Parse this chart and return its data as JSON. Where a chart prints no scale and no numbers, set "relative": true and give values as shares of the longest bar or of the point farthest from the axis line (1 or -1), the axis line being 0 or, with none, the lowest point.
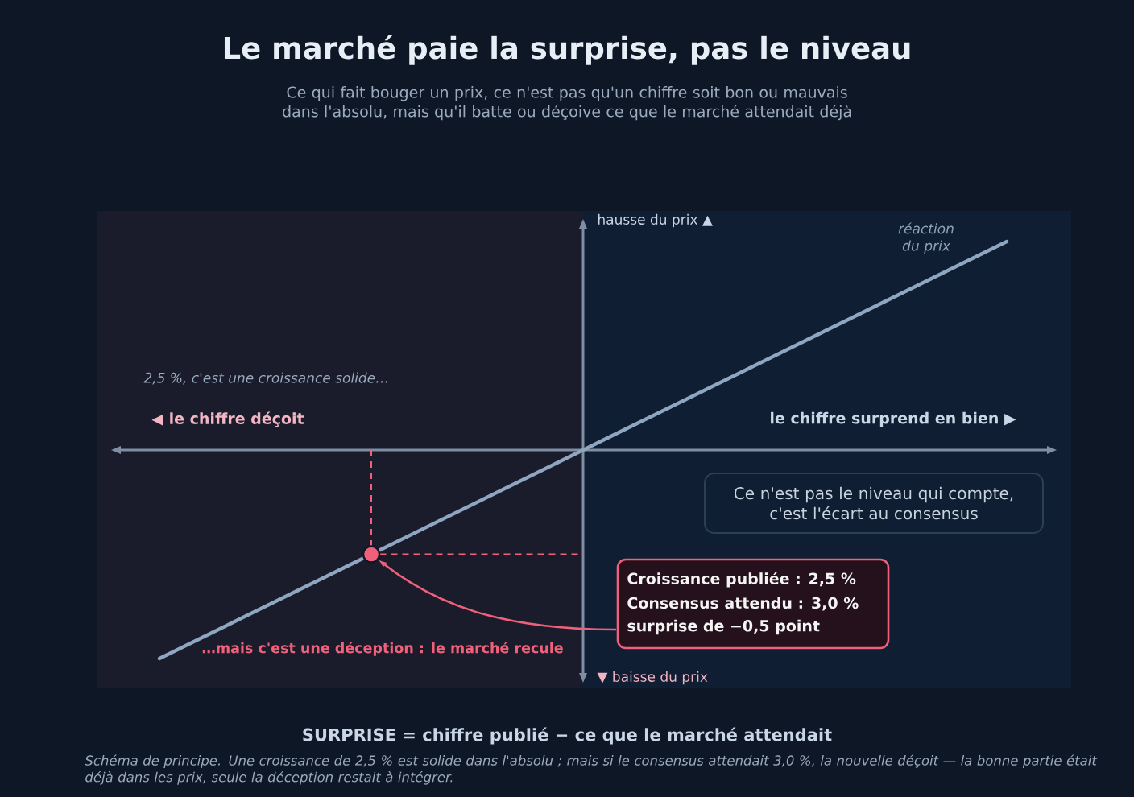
{
  "chart_data": {
    "type": "line",
    "relative": true,
    "title": "Le marché paie la surprise, pas le niveau",
    "subtitle": "Ce qui fait bouger un prix, ce n'est pas qu'un chiffre soit bon ou mauvais dans l'absolu, mais qu'il batte ou déçoive ce que le marché attendait déjà",
    "categories": [
      null,
      null,
      null,
      null,
      null
    ],
    "series": [
      {
        "name": "réaction du prix",
        "color": "#8fa6c0",
        "values": [
          -1,
          -0.5,
          0,
          0.5,
          1
        ]
      }
    ],
    "annotations": [
      "hausse du prix ▲",
      "▼ baisse du prix",
      "◀ le chiffre déçoit",
      "le chiffre surprend en bien ▶",
      "2,5 %, c'est une croissance solide…",
      "…mais c'est une déception : le marché recule",
      "Ce n'est pas le niveau qui compte, c'est l'écart au consensus",
      "Croissance publiée : 2,5 %",
      "Consensus attendu : 3,0 %",
      "surprise de −0,5 point",
      "SURPRISE = chiffre publié − ce que le marché attendait",
      "Schéma de principe. Une croissance de 2,5 % est solide dans l'absolu ; mais si le consensus attendait 3,0 %, la nouvelle déçoit — la bonne partie était déjà dans les prix, seule la déception restait à intégrer."
    ]
  }
}
